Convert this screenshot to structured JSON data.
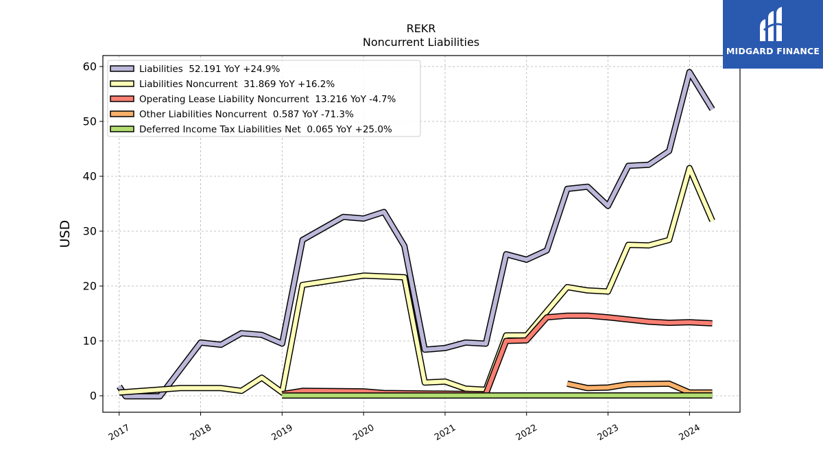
{
  "chart_data": {
    "type": "line",
    "title": "REKR",
    "subtitle": "Noncurrent  Liabilities",
    "ylabel": "USD",
    "xlabel": "",
    "x_ticks": [
      "2017",
      "2018",
      "2019",
      "2020",
      "2021",
      "2022",
      "2023",
      "2024"
    ],
    "xlim": [
      2016.8,
      2024.62
    ],
    "ylim": [
      -3,
      62
    ],
    "y_ticks": [
      0,
      10,
      20,
      30,
      40,
      50,
      60
    ],
    "grid": true,
    "legend_position": "upper-left",
    "series": [
      {
        "name": "Liabilities  52.191 YoY +24.9%",
        "color": "#bcb8da",
        "points": [
          [
            2017.0,
            1.7
          ],
          [
            2017.08,
            -0.1
          ],
          [
            2017.5,
            -0.1
          ],
          [
            2018.0,
            9.7
          ],
          [
            2018.25,
            9.3
          ],
          [
            2018.5,
            11.4
          ],
          [
            2018.75,
            11.1
          ],
          [
            2019.0,
            9.5
          ],
          [
            2019.25,
            28.4
          ],
          [
            2019.75,
            32.6
          ],
          [
            2020.0,
            32.3
          ],
          [
            2020.25,
            33.5
          ],
          [
            2020.5,
            27.3
          ],
          [
            2020.75,
            8.4
          ],
          [
            2021.0,
            8.7
          ],
          [
            2021.25,
            9.7
          ],
          [
            2021.5,
            9.5
          ],
          [
            2021.75,
            25.8
          ],
          [
            2022.0,
            24.8
          ],
          [
            2022.25,
            26.5
          ],
          [
            2022.5,
            37.7
          ],
          [
            2022.75,
            38.1
          ],
          [
            2023.0,
            34.6
          ],
          [
            2023.25,
            41.9
          ],
          [
            2023.5,
            42.1
          ],
          [
            2023.75,
            44.6
          ],
          [
            2024.0,
            59.0
          ],
          [
            2024.28,
            52.2
          ]
        ]
      },
      {
        "name": "Liabilities Noncurrent  31.869 YoY +16.2%",
        "color": "#fefeb7",
        "points": [
          [
            2017.0,
            0.6
          ],
          [
            2017.75,
            1.4
          ],
          [
            2018.0,
            1.4
          ],
          [
            2018.25,
            1.4
          ],
          [
            2018.5,
            0.9
          ],
          [
            2018.75,
            3.3
          ],
          [
            2019.0,
            0.6
          ],
          [
            2019.25,
            20.2
          ],
          [
            2020.0,
            21.9
          ],
          [
            2020.5,
            21.6
          ],
          [
            2020.75,
            2.4
          ],
          [
            2021.0,
            2.6
          ],
          [
            2021.25,
            1.3
          ],
          [
            2021.5,
            1.1
          ],
          [
            2021.75,
            11.0
          ],
          [
            2022.0,
            11.0
          ],
          [
            2022.5,
            19.8
          ],
          [
            2022.75,
            19.2
          ],
          [
            2023.0,
            19.0
          ],
          [
            2023.25,
            27.5
          ],
          [
            2023.5,
            27.4
          ],
          [
            2023.75,
            28.4
          ],
          [
            2024.0,
            41.5
          ],
          [
            2024.28,
            31.9
          ]
        ]
      },
      {
        "name": "Operating Lease Liability Noncurrent  13.216 YoY -4.7%",
        "color": "#f97f73",
        "points": [
          [
            2019.0,
            0.3
          ],
          [
            2019.25,
            0.9
          ],
          [
            2020.0,
            0.8
          ],
          [
            2020.25,
            0.5
          ],
          [
            2021.5,
            0.3
          ],
          [
            2021.75,
            10.0
          ],
          [
            2022.0,
            10.1
          ],
          [
            2022.25,
            14.3
          ],
          [
            2022.5,
            14.6
          ],
          [
            2022.75,
            14.6
          ],
          [
            2023.0,
            14.3
          ],
          [
            2023.5,
            13.5
          ],
          [
            2023.75,
            13.3
          ],
          [
            2024.0,
            13.4
          ],
          [
            2024.28,
            13.2
          ]
        ]
      },
      {
        "name": "Other Liabilities Noncurrent  0.587 YoY -71.3%",
        "color": "#f9b06a",
        "points": [
          [
            2022.5,
            2.2
          ],
          [
            2022.75,
            1.4
          ],
          [
            2023.0,
            1.5
          ],
          [
            2023.25,
            2.1
          ],
          [
            2023.75,
            2.2
          ],
          [
            2024.0,
            0.6
          ],
          [
            2024.28,
            0.6
          ]
        ]
      },
      {
        "name": "Deferred Income Tax Liabilities Net  0.065 YoY +25.0%",
        "color": "#b3dd71",
        "points": [
          [
            2019.0,
            0.05
          ],
          [
            2024.28,
            0.065
          ]
        ]
      }
    ]
  },
  "logo": {
    "text": "MIDGARD FINANCE"
  }
}
